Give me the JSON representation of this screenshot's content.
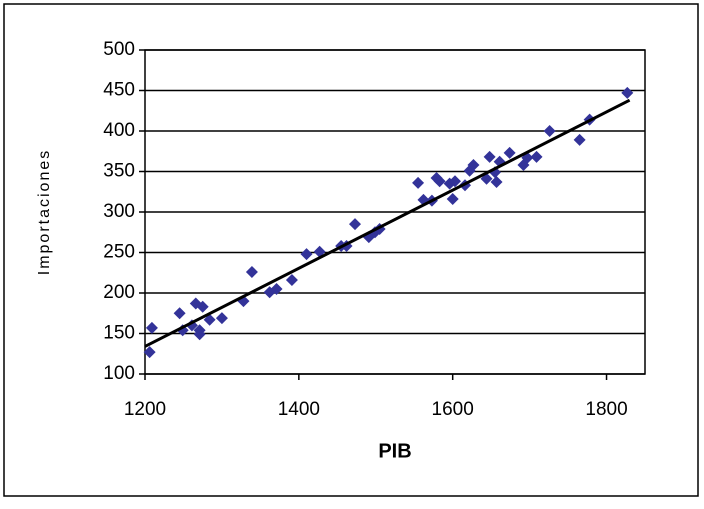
{
  "chart_data": {
    "type": "scatter",
    "x_label": "PIB",
    "y_label": "Importaciones",
    "xlim": [
      1200,
      1850
    ],
    "xticks": [
      1200,
      1400,
      1600,
      1800
    ],
    "ylim": [
      100,
      500
    ],
    "yticks": [
      100,
      150,
      200,
      250,
      300,
      350,
      400,
      450,
      500
    ],
    "grid": true,
    "color": "#333399",
    "line_color": "#000000",
    "x": [
      1206,
      1209,
      1245,
      1249,
      1261,
      1266,
      1271,
      1271,
      1275,
      1284,
      1300,
      1328,
      1339,
      1362,
      1371,
      1391,
      1410,
      1427,
      1455,
      1462,
      1473,
      1491,
      1499,
      1505,
      1555,
      1562,
      1573,
      1579,
      1583,
      1596,
      1600,
      1603,
      1616,
      1622,
      1627,
      1644,
      1648,
      1655,
      1657,
      1661,
      1674,
      1692,
      1697,
      1709,
      1726,
      1765,
      1778,
      1827
    ],
    "y": [
      127,
      157,
      175,
      154,
      160,
      187,
      154,
      149,
      183,
      167,
      169,
      190,
      226,
      201,
      205,
      216,
      248,
      251,
      258,
      258,
      285,
      269,
      275,
      279,
      336,
      315,
      314,
      342,
      338,
      335,
      316,
      338,
      333,
      351,
      358,
      341,
      368,
      349,
      337,
      362,
      373,
      358,
      367,
      368,
      400,
      389,
      414,
      447
    ],
    "trendline": {
      "x": [
        1200,
        1830
      ],
      "y": [
        134,
        438
      ]
    }
  }
}
